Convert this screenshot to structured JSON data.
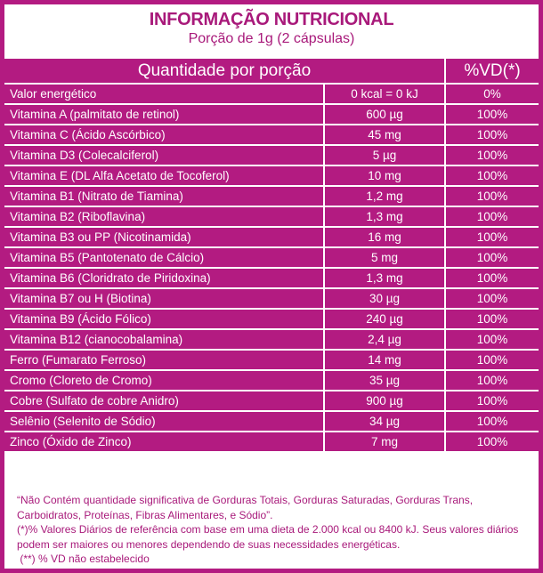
{
  "header": {
    "title": "INFORMAÇÃO NUTRICIONAL",
    "serving": "Porção de 1g (2 cápsulas)"
  },
  "table": {
    "col_quantity": "Quantidade por porção",
    "col_vd": "%VD(*)",
    "rows": [
      {
        "name": "Valor energético",
        "amount": "0 kcal = 0 kJ",
        "vd": "0%"
      },
      {
        "name": "Vitamina A  (palmitato de retinol)",
        "amount": "600 µg",
        "vd": "100%"
      },
      {
        "name": "Vitamina C (Ácido Ascórbico)",
        "amount": "45 mg",
        "vd": "100%"
      },
      {
        "name": "Vitamina D3 (Colecalciferol)",
        "amount": "5 µg",
        "vd": "100%"
      },
      {
        "name": "Vitamina E (DL Alfa Acetato de Tocoferol)",
        "amount": "10 mg",
        "vd": "100%"
      },
      {
        "name": "Vitamina B1  (Nitrato de Tiamina)",
        "amount": "1,2 mg",
        "vd": "100%"
      },
      {
        "name": "Vitamina B2 (Riboflavina)",
        "amount": "1,3 mg",
        "vd": "100%"
      },
      {
        "name": "Vitamina B3 ou PP (Nicotinamida)",
        "amount": "16 mg",
        "vd": "100%"
      },
      {
        "name": "Vitamina B5 (Pantotenato de Cálcio)",
        "amount": "5 mg",
        "vd": "100%"
      },
      {
        "name": "Vitamina B6 (Cloridrato de Piridoxina)",
        "amount": "1,3 mg",
        "vd": "100%"
      },
      {
        "name": "Vitamina B7 ou H (Biotina)",
        "amount": "30 µg",
        "vd": "100%"
      },
      {
        "name": "Vitamina B9 (Ácido Fólico)",
        "amount": "240 µg",
        "vd": "100%"
      },
      {
        "name": "Vitamina B12 (cianocobalamina)",
        "amount": "2,4 µg",
        "vd": "100%"
      },
      {
        "name": "Ferro (Fumarato Ferroso)",
        "amount": "14 mg",
        "vd": "100%"
      },
      {
        "name": "Cromo (Cloreto de Cromo)",
        "amount": "35 µg",
        "vd": "100%"
      },
      {
        "name": "Cobre (Sulfato de cobre Anidro)",
        "amount": "900 µg",
        "vd": "100%"
      },
      {
        "name": "Selênio (Selenito de Sódio)",
        "amount": "34 µg",
        "vd": "100%"
      },
      {
        "name": "Zinco (Óxido de Zinco)",
        "amount": "7 mg",
        "vd": "100%"
      }
    ]
  },
  "footer": {
    "note1": "“Não Contém quantidade significativa de Gorduras Totais, Gorduras Saturadas, Gorduras Trans, Carboidratos, Proteínas, Fibras Alimentares, e Sódio”.",
    "note2": "(*)% Valores Diários de referência com base em uma dieta de 2.000 kcal ou 8400 kJ. Seus valores diários podem ser maiores ou menores dependendo de suas necessidades energéticas.",
    "note3": " (**) % VD não estabelecido"
  },
  "colors": {
    "accent": "#b31b81"
  }
}
